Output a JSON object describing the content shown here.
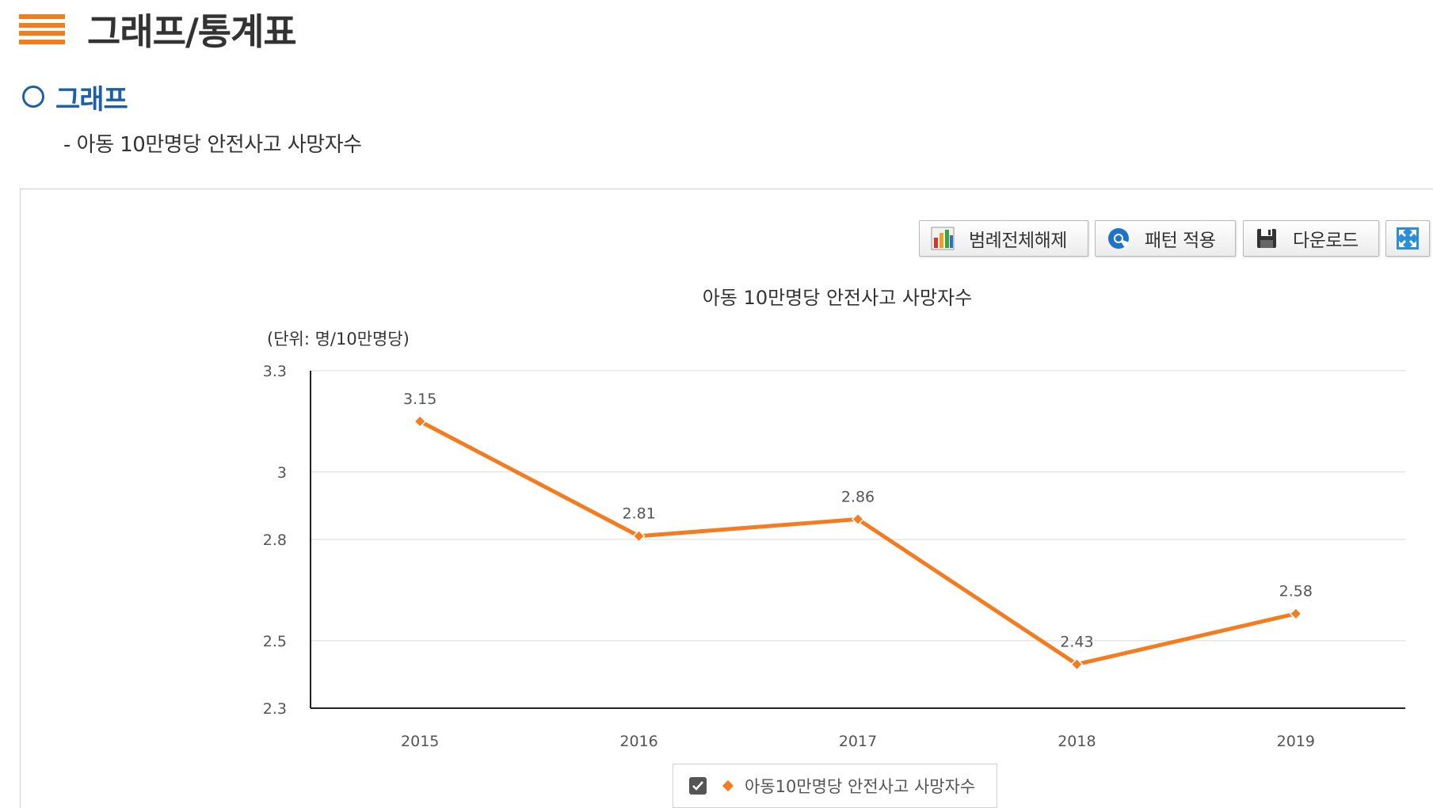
{
  "header": {
    "title": "그래프/통계표"
  },
  "section": {
    "title": "그래프",
    "subtitle": "- 아동 10만명당 안전사고 사망자수"
  },
  "toolbar": {
    "legend_off_label": "범례전체해제",
    "pattern_label": "패턴 적용",
    "download_label": "다운로드",
    "fullscreen_icon": "fullscreen-icon"
  },
  "legend": {
    "checked": true,
    "label": "아동10만명당 안전사고 사망자수"
  },
  "colors": {
    "series": "#f47c20",
    "accent": "#1b5fa6",
    "header_icon": "#f47c20"
  },
  "chart_data": {
    "type": "line",
    "title": "아동 10만명당 안전사고 사망자수",
    "unit_label": "(단위: 명/10만명당)",
    "xlabel": "",
    "ylabel": "",
    "categories": [
      "2015",
      "2016",
      "2017",
      "2018",
      "2019"
    ],
    "series": [
      {
        "name": "아동10만명당 안전사고 사망자수",
        "values": [
          3.15,
          2.81,
          2.86,
          2.43,
          2.58
        ]
      }
    ],
    "y_ticks": [
      "3.3",
      "3",
      "2.8",
      "2.5",
      "2.3"
    ],
    "ylim": [
      2.3,
      3.3
    ],
    "grid": true,
    "legend_position": "bottom"
  }
}
